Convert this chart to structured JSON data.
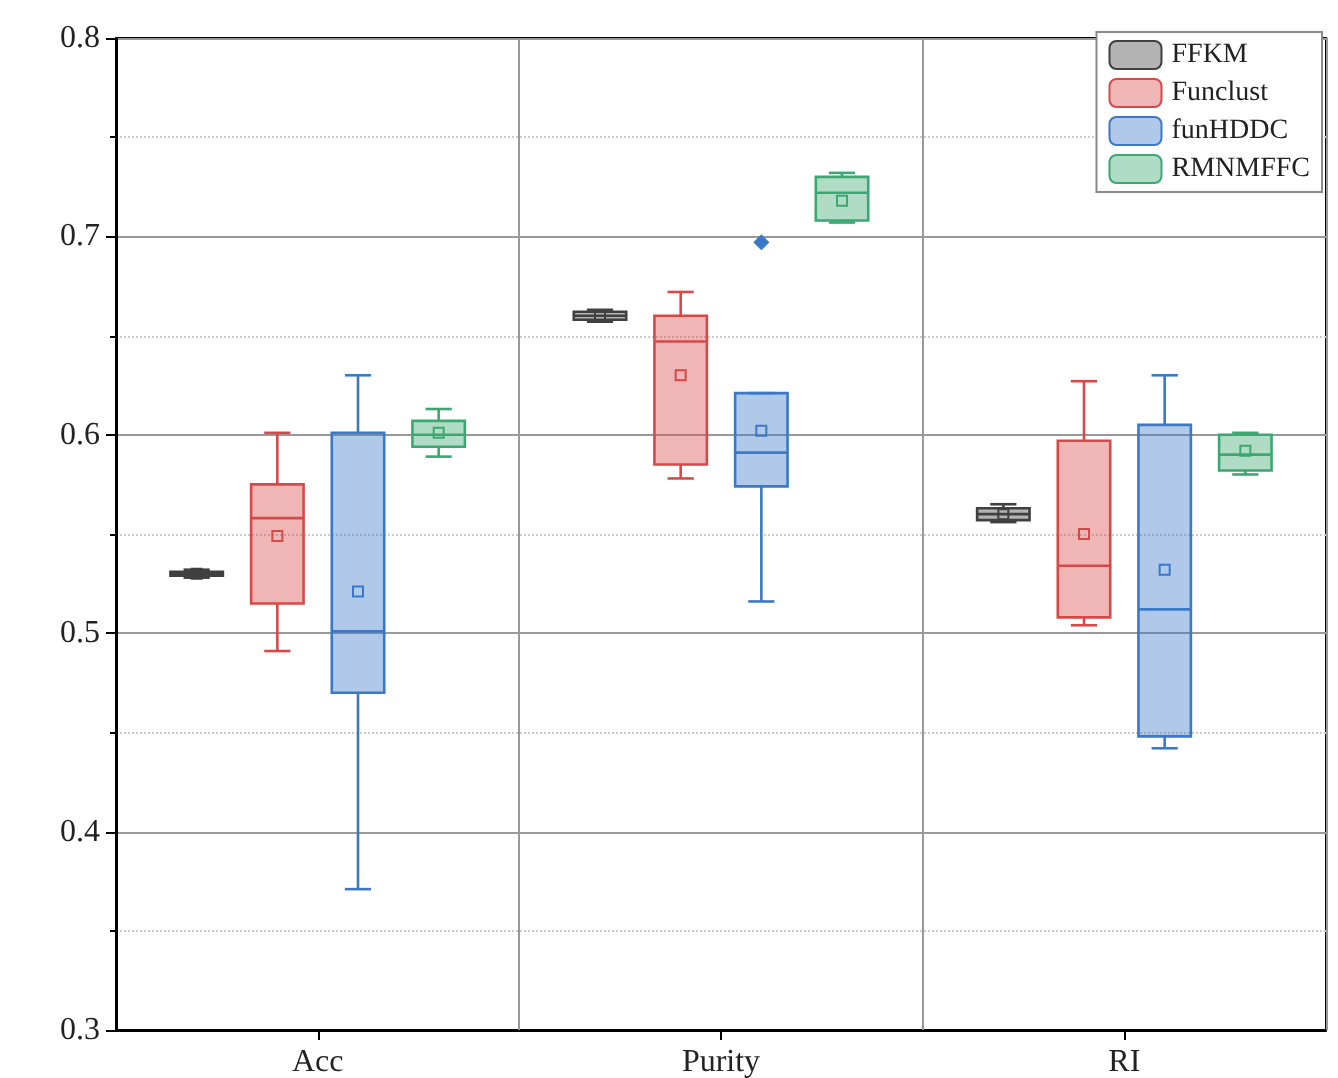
{
  "chart_data": {
    "type": "box",
    "categories": [
      "Acc",
      "Purity",
      "RI"
    ],
    "ylim": [
      0.3,
      0.8
    ],
    "yticks": [
      0.3,
      0.4,
      0.5,
      0.6,
      0.7,
      0.8
    ],
    "grid": true,
    "legend": "top right",
    "series": [
      {
        "name": "FFKM",
        "color": "#404040",
        "boxes": [
          {
            "low": 0.528,
            "q1": 0.529,
            "median": 0.53,
            "q3": 0.531,
            "high": 0.532,
            "mean": 0.53
          },
          {
            "low": 0.657,
            "q1": 0.658,
            "median": 0.66,
            "q3": 0.662,
            "high": 0.663,
            "mean": 0.66
          },
          {
            "low": 0.556,
            "q1": 0.557,
            "median": 0.56,
            "q3": 0.563,
            "high": 0.565,
            "mean": 0.56
          }
        ]
      },
      {
        "name": "Funclust",
        "color": "#d94848",
        "boxes": [
          {
            "low": 0.491,
            "q1": 0.515,
            "median": 0.558,
            "q3": 0.575,
            "high": 0.601,
            "mean": 0.549
          },
          {
            "low": 0.578,
            "q1": 0.585,
            "median": 0.647,
            "q3": 0.66,
            "high": 0.672,
            "mean": 0.63
          },
          {
            "low": 0.504,
            "q1": 0.508,
            "median": 0.534,
            "q3": 0.597,
            "high": 0.627,
            "mean": 0.55
          }
        ]
      },
      {
        "name": "funHDDC",
        "color": "#3a78c8",
        "boxes": [
          {
            "low": 0.371,
            "q1": 0.47,
            "median": 0.501,
            "q3": 0.601,
            "high": 0.63,
            "mean": 0.521
          },
          {
            "low": 0.516,
            "q1": 0.574,
            "median": 0.591,
            "q3": 0.621,
            "high": 0.621,
            "mean": 0.602,
            "outliers": [
              0.697
            ]
          },
          {
            "low": 0.442,
            "q1": 0.448,
            "median": 0.512,
            "q3": 0.605,
            "high": 0.63,
            "mean": 0.532
          }
        ]
      },
      {
        "name": "RMNMFFC",
        "color": "#3aa870",
        "boxes": [
          {
            "low": 0.589,
            "q1": 0.594,
            "median": 0.6,
            "q3": 0.607,
            "high": 0.613,
            "mean": 0.601
          },
          {
            "low": 0.707,
            "q1": 0.708,
            "median": 0.722,
            "q3": 0.73,
            "high": 0.732,
            "mean": 0.718
          },
          {
            "low": 0.58,
            "q1": 0.582,
            "median": 0.59,
            "q3": 0.6,
            "high": 0.601,
            "mean": 0.592
          }
        ]
      }
    ]
  }
}
